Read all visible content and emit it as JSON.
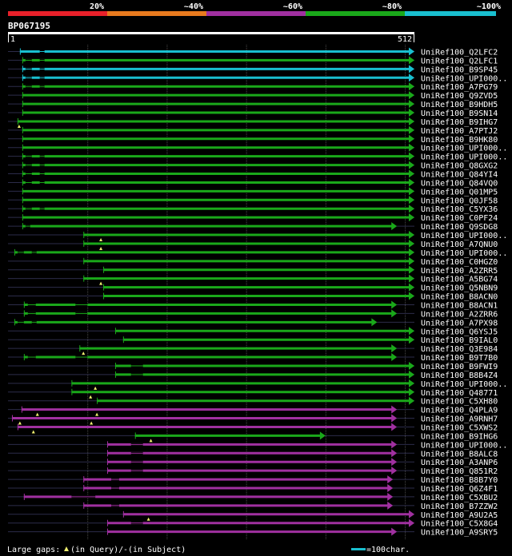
{
  "query": {
    "id": "BP067195",
    "start_label": "1",
    "end_label": "512",
    "length": 512
  },
  "identity_scale": [
    {
      "label": "20%",
      "color": "#e8202a"
    },
    {
      "label": "~40%",
      "color": "#e87a1e"
    },
    {
      "label": "~60%",
      "color": "#a030a0"
    },
    {
      "label": "~80%",
      "color": "#1aa81a"
    },
    {
      "label": "~100%",
      "color": "#19bfcf"
    }
  ],
  "colors": {
    "background": "#000000",
    "guide": "#4a4a4a",
    "track": "#2c2c4a",
    "marker": "#f0f070",
    "axis": "#ffffff"
  },
  "hits": [
    {
      "name": "UniRef100_Q2LFC2",
      "color": "cyan",
      "start": 15,
      "end": 512,
      "gaps_subject": [
        [
          40,
          46
        ]
      ],
      "gaps_query": []
    },
    {
      "name": "UniRef100_Q2LFC1",
      "color": "green",
      "start": 18,
      "end": 512,
      "gaps_subject": [
        [
          22,
          30
        ],
        [
          40,
          46
        ]
      ],
      "gaps_query": []
    },
    {
      "name": "UniRef100_B9SP45",
      "color": "cyan",
      "start": 18,
      "end": 512,
      "gaps_subject": [
        [
          22,
          30
        ],
        [
          40,
          46
        ]
      ],
      "gaps_query": []
    },
    {
      "name": "UniRef100_UPI000..",
      "color": "cyan",
      "start": 18,
      "end": 512,
      "gaps_subject": [
        [
          22,
          30
        ],
        [
          40,
          46
        ]
      ],
      "gaps_query": []
    },
    {
      "name": "UniRef100_A7PG79",
      "color": "green",
      "start": 18,
      "end": 512,
      "gaps_subject": [
        [
          22,
          30
        ],
        [
          40,
          46
        ]
      ],
      "gaps_query": []
    },
    {
      "name": "UniRef100_Q9ZVD5",
      "color": "green",
      "start": 18,
      "end": 512,
      "gaps_subject": [],
      "gaps_query": []
    },
    {
      "name": "UniRef100_B9HDH5",
      "color": "green",
      "start": 18,
      "end": 512,
      "gaps_subject": [],
      "gaps_query": []
    },
    {
      "name": "UniRef100_B9SN14",
      "color": "green",
      "start": 18,
      "end": 512,
      "gaps_subject": [],
      "gaps_query": []
    },
    {
      "name": "UniRef100_B9IHG7",
      "color": "green",
      "start": 12,
      "end": 512,
      "gaps_subject": [],
      "gaps_query": [
        14
      ]
    },
    {
      "name": "UniRef100_A7PTJ2",
      "color": "green",
      "start": 18,
      "end": 512,
      "gaps_subject": [],
      "gaps_query": []
    },
    {
      "name": "UniRef100_B9HK80",
      "color": "green",
      "start": 18,
      "end": 512,
      "gaps_subject": [],
      "gaps_query": []
    },
    {
      "name": "UniRef100_UPI000..",
      "color": "green",
      "start": 18,
      "end": 512,
      "gaps_subject": [],
      "gaps_query": []
    },
    {
      "name": "UniRef100_UPI000..",
      "color": "green",
      "start": 18,
      "end": 512,
      "gaps_subject": [
        [
          22,
          30
        ],
        [
          40,
          46
        ]
      ],
      "gaps_query": []
    },
    {
      "name": "UniRef100_Q8GXG2",
      "color": "green",
      "start": 18,
      "end": 512,
      "gaps_subject": [
        [
          22,
          30
        ],
        [
          40,
          46
        ]
      ],
      "gaps_query": []
    },
    {
      "name": "UniRef100_Q84YI4",
      "color": "green",
      "start": 18,
      "end": 512,
      "gaps_subject": [
        [
          22,
          30
        ],
        [
          40,
          46
        ]
      ],
      "gaps_query": []
    },
    {
      "name": "UniRef100_Q84VQ0",
      "color": "green",
      "start": 18,
      "end": 512,
      "gaps_subject": [
        [
          22,
          30
        ],
        [
          40,
          46
        ]
      ],
      "gaps_query": []
    },
    {
      "name": "UniRef100_Q01MP5",
      "color": "green",
      "start": 18,
      "end": 512,
      "gaps_subject": [],
      "gaps_query": []
    },
    {
      "name": "UniRef100_Q0JF58",
      "color": "green",
      "start": 18,
      "end": 512,
      "gaps_subject": [],
      "gaps_query": []
    },
    {
      "name": "UniRef100_C5YX36",
      "color": "green",
      "start": 18,
      "end": 512,
      "gaps_subject": [
        [
          22,
          30
        ],
        [
          40,
          46
        ]
      ],
      "gaps_query": []
    },
    {
      "name": "UniRef100_C0PF24",
      "color": "green",
      "start": 18,
      "end": 512,
      "gaps_subject": [],
      "gaps_query": []
    },
    {
      "name": "UniRef100_Q9SDG8",
      "color": "green",
      "start": 18,
      "end": 490,
      "gaps_subject": [
        [
          22,
          28
        ]
      ],
      "gaps_query": []
    },
    {
      "name": "UniRef100_UPI000..",
      "color": "green",
      "start": 95,
      "end": 512,
      "gaps_subject": [],
      "gaps_query": [
        117
      ]
    },
    {
      "name": "UniRef100_A7QNU0",
      "color": "green",
      "start": 95,
      "end": 512,
      "gaps_subject": [],
      "gaps_query": [
        117
      ]
    },
    {
      "name": "UniRef100_UPI000..",
      "color": "green",
      "start": 8,
      "end": 512,
      "gaps_subject": [
        [
          12,
          20
        ],
        [
          30,
          36
        ]
      ],
      "gaps_query": []
    },
    {
      "name": "UniRef100_C0HGZ0",
      "color": "green",
      "start": 95,
      "end": 512,
      "gaps_subject": [],
      "gaps_query": []
    },
    {
      "name": "UniRef100_A2ZRR5",
      "color": "green",
      "start": 120,
      "end": 512,
      "gaps_subject": [],
      "gaps_query": []
    },
    {
      "name": "UniRef100_A5BG74",
      "color": "green",
      "start": 95,
      "end": 512,
      "gaps_subject": [],
      "gaps_query": [
        117
      ]
    },
    {
      "name": "UniRef100_Q5NBN9",
      "color": "green",
      "start": 120,
      "end": 512,
      "gaps_subject": [],
      "gaps_query": []
    },
    {
      "name": "UniRef100_B8ACN0",
      "color": "green",
      "start": 120,
      "end": 512,
      "gaps_subject": [],
      "gaps_query": []
    },
    {
      "name": "UniRef100_B8ACN1",
      "color": "green",
      "start": 20,
      "end": 490,
      "gaps_subject": [
        [
          25,
          35
        ],
        [
          85,
          100
        ]
      ],
      "gaps_query": []
    },
    {
      "name": "UniRef100_A2ZRR6",
      "color": "green",
      "start": 20,
      "end": 490,
      "gaps_subject": [
        [
          25,
          35
        ],
        [
          85,
          100
        ]
      ],
      "gaps_query": []
    },
    {
      "name": "UniRef100_A7PX98",
      "color": "green",
      "start": 8,
      "end": 465,
      "gaps_subject": [
        [
          12,
          20
        ],
        [
          30,
          36
        ]
      ],
      "gaps_query": []
    },
    {
      "name": "UniRef100_Q6YSJ5",
      "color": "green",
      "start": 135,
      "end": 512,
      "gaps_subject": [],
      "gaps_query": []
    },
    {
      "name": "UniRef100_B9IAL0",
      "color": "green",
      "start": 145,
      "end": 512,
      "gaps_subject": [],
      "gaps_query": []
    },
    {
      "name": "UniRef100_Q3E984",
      "color": "green",
      "start": 90,
      "end": 490,
      "gaps_subject": [],
      "gaps_query": [
        95
      ]
    },
    {
      "name": "UniRef100_B9T7B0",
      "color": "green",
      "start": 20,
      "end": 490,
      "gaps_subject": [
        [
          25,
          35
        ],
        [
          85,
          100
        ]
      ],
      "gaps_query": []
    },
    {
      "name": "UniRef100_B9FWI9",
      "color": "green",
      "start": 135,
      "end": 512,
      "gaps_subject": [
        [
          155,
          170
        ]
      ],
      "gaps_query": []
    },
    {
      "name": "UniRef100_B8B4Z4",
      "color": "green",
      "start": 135,
      "end": 512,
      "gaps_subject": [
        [
          155,
          170
        ]
      ],
      "gaps_query": []
    },
    {
      "name": "UniRef100_UPI000..",
      "color": "green",
      "start": 80,
      "end": 512,
      "gaps_subject": [],
      "gaps_query": [
        110
      ]
    },
    {
      "name": "UniRef100_Q48771",
      "color": "green",
      "start": 80,
      "end": 512,
      "gaps_subject": [],
      "gaps_query": [
        104
      ]
    },
    {
      "name": "UniRef100_C5XH80",
      "color": "green",
      "start": 112,
      "end": 512,
      "gaps_subject": [],
      "gaps_query": []
    },
    {
      "name": "UniRef100_Q4PLA9",
      "color": "purple",
      "start": 17,
      "end": 490,
      "gaps_subject": [],
      "gaps_query": [
        37,
        112
      ]
    },
    {
      "name": "UniRef100_A9RNH7",
      "color": "purple",
      "start": 5,
      "end": 490,
      "gaps_subject": [],
      "gaps_query": [
        15,
        105
      ]
    },
    {
      "name": "UniRef100_C5XWS2",
      "color": "purple",
      "start": 12,
      "end": 490,
      "gaps_subject": [],
      "gaps_query": [
        32
      ]
    },
    {
      "name": "UniRef100_B9IHG6",
      "color": "green",
      "start": 160,
      "end": 400,
      "gaps_subject": [],
      "gaps_query": [
        180
      ]
    },
    {
      "name": "UniRef100_UPI000..",
      "color": "purple",
      "start": 125,
      "end": 490,
      "gaps_subject": [
        [
          155,
          170
        ]
      ],
      "gaps_query": []
    },
    {
      "name": "UniRef100_B8ALC8",
      "color": "purple",
      "start": 125,
      "end": 490,
      "gaps_subject": [
        [
          155,
          170
        ]
      ],
      "gaps_query": []
    },
    {
      "name": "UniRef100_A3ANP6",
      "color": "purple",
      "start": 125,
      "end": 490,
      "gaps_subject": [
        [
          155,
          170
        ]
      ],
      "gaps_query": []
    },
    {
      "name": "UniRef100_Q851R2",
      "color": "purple",
      "start": 125,
      "end": 490,
      "gaps_subject": [
        [
          155,
          170
        ]
      ],
      "gaps_query": []
    },
    {
      "name": "UniRef100_B8B7Y0",
      "color": "purple",
      "start": 95,
      "end": 485,
      "gaps_subject": [
        [
          130,
          140
        ]
      ],
      "gaps_query": []
    },
    {
      "name": "UniRef100_Q6Z4F1",
      "color": "purple",
      "start": 95,
      "end": 485,
      "gaps_subject": [
        [
          130,
          140
        ]
      ],
      "gaps_query": []
    },
    {
      "name": "UniRef100_C5XBU2",
      "color": "purple",
      "start": 20,
      "end": 485,
      "gaps_subject": [
        [
          80,
          110
        ]
      ],
      "gaps_query": []
    },
    {
      "name": "UniRef100_B7ZZW2",
      "color": "purple",
      "start": 95,
      "end": 485,
      "gaps_subject": [
        [
          130,
          140
        ]
      ],
      "gaps_query": []
    },
    {
      "name": "UniRef100_A9U2A5",
      "color": "purple",
      "start": 145,
      "end": 512,
      "gaps_subject": [],
      "gaps_query": [
        177
      ]
    },
    {
      "name": "UniRef100_C5X8G4",
      "color": "purple",
      "start": 125,
      "end": 512,
      "gaps_subject": [
        [
          155,
          170
        ]
      ],
      "gaps_query": []
    },
    {
      "name": "UniRef100_A9SRY5",
      "color": "purple",
      "start": 125,
      "end": 490,
      "gaps_subject": [],
      "gaps_query": []
    }
  ],
  "legend": {
    "prefix": "Large gaps:",
    "query_text": "(in Query)/",
    "subject_mark": "-",
    "subject_text": " (in Subject)",
    "scale_text": "=100char."
  }
}
